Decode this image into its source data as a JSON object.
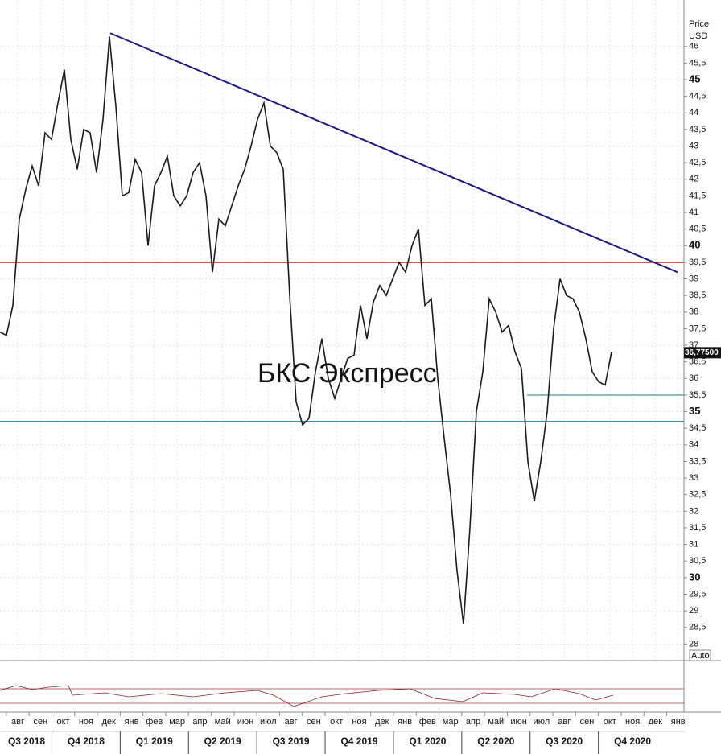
{
  "chart_data": {
    "type": "line",
    "y_axis_label": "Price",
    "y_axis_unit": "USD",
    "watermark": "БКС Экспресс",
    "auto_button": "Auto",
    "months": [
      "авг",
      "сен",
      "окт",
      "ноя",
      "дек",
      "янв",
      "фев",
      "мар",
      "апр",
      "май",
      "июн",
      "июл",
      "авг",
      "сен",
      "окт",
      "ноя",
      "дек",
      "янв",
      "фев",
      "мар",
      "апр",
      "май",
      "июн",
      "июл",
      "авг",
      "сен",
      "окт",
      "ноя",
      "дек",
      "янв"
    ],
    "quarters": [
      "Q3 2018",
      "Q4 2018",
      "Q1 2019",
      "Q2 2019",
      "Q3 2019",
      "Q4 2019",
      "Q1 2020",
      "Q2 2020",
      "Q3 2020",
      "Q4 2020"
    ],
    "series": [
      {
        "color": "#1a1a1a",
        "values": [
          37.4,
          37.3,
          38.2,
          40.8,
          41.7,
          42.4,
          41.8,
          43.4,
          43.2,
          44.3,
          45.3,
          43.2,
          42.3,
          43.5,
          43.4,
          42.2,
          43.8,
          46.3,
          44.2,
          41.5,
          41.6,
          42.6,
          42.2,
          40.0,
          41.8,
          42.2,
          42.7,
          41.5,
          41.2,
          41.5,
          42.2,
          42.5,
          41.5,
          39.2,
          40.8,
          40.6,
          41.2,
          41.8,
          42.3,
          43.0,
          43.8,
          44.3,
          43.0,
          42.8,
          42.3,
          38.5,
          35.3,
          34.6,
          34.8,
          36.2,
          37.2,
          36.0,
          35.4,
          36.0,
          36.6,
          36.7,
          38.2,
          37.2,
          38.3,
          38.8,
          38.5,
          39.0,
          39.5,
          39.2,
          40.0,
          40.5,
          38.2,
          38.4,
          36.0,
          34.2,
          32.5,
          30.2,
          28.6,
          31.5,
          35.0,
          36.2,
          38.4,
          38.0,
          37.4,
          37.6,
          36.8,
          36.3,
          33.5,
          32.3,
          33.5,
          35.0,
          37.5,
          39.0,
          38.5,
          38.4,
          38.0,
          37.2,
          36.2,
          35.9,
          35.8,
          36.8
        ]
      }
    ],
    "last_price": {
      "value": 36.775,
      "label": "36,77500"
    },
    "hlines": [
      {
        "value": 39.5,
        "color": "#e02020"
      },
      {
        "value": 34.7,
        "color": "#1a8080"
      },
      {
        "value": 35.5,
        "color": "#1a8080",
        "partial": true
      }
    ],
    "trendline": {
      "from": 46.4,
      "to": 39.2,
      "color": "#1a1a80"
    },
    "ylim": [
      27.5,
      47.4
    ],
    "yticks": [
      28,
      {
        "value": 28.5,
        "label": "28,5"
      },
      29,
      {
        "value": 29.5,
        "label": "29,5"
      },
      30,
      {
        "value": 30.5,
        "label": "30,5"
      },
      31,
      {
        "value": 31.5,
        "label": "31,5"
      },
      32,
      {
        "value": 32.5,
        "label": "32,5"
      },
      33,
      {
        "value": 33.5,
        "label": "33,5"
      },
      34,
      {
        "value": 34.5,
        "label": "34,5"
      },
      35,
      {
        "value": 35.5,
        "label": "35,5"
      },
      36,
      {
        "value": 36.5,
        "label": "36,5"
      },
      37,
      {
        "value": 37.5,
        "label": "37,5"
      },
      38,
      {
        "value": 38.5,
        "label": "38,5"
      },
      39,
      {
        "value": 39.5,
        "label": "39,5"
      },
      40,
      {
        "value": 40.5,
        "label": "40,5"
      },
      41,
      {
        "value": 41.5,
        "label": "41,5"
      },
      42,
      {
        "value": 42.5,
        "label": "42,5"
      },
      43,
      {
        "value": 43.5,
        "label": "43,5"
      },
      44,
      {
        "value": 44.5,
        "label": "44,5"
      },
      45,
      {
        "value": 45.5,
        "label": "45,5"
      },
      46
    ],
    "grid": true
  }
}
